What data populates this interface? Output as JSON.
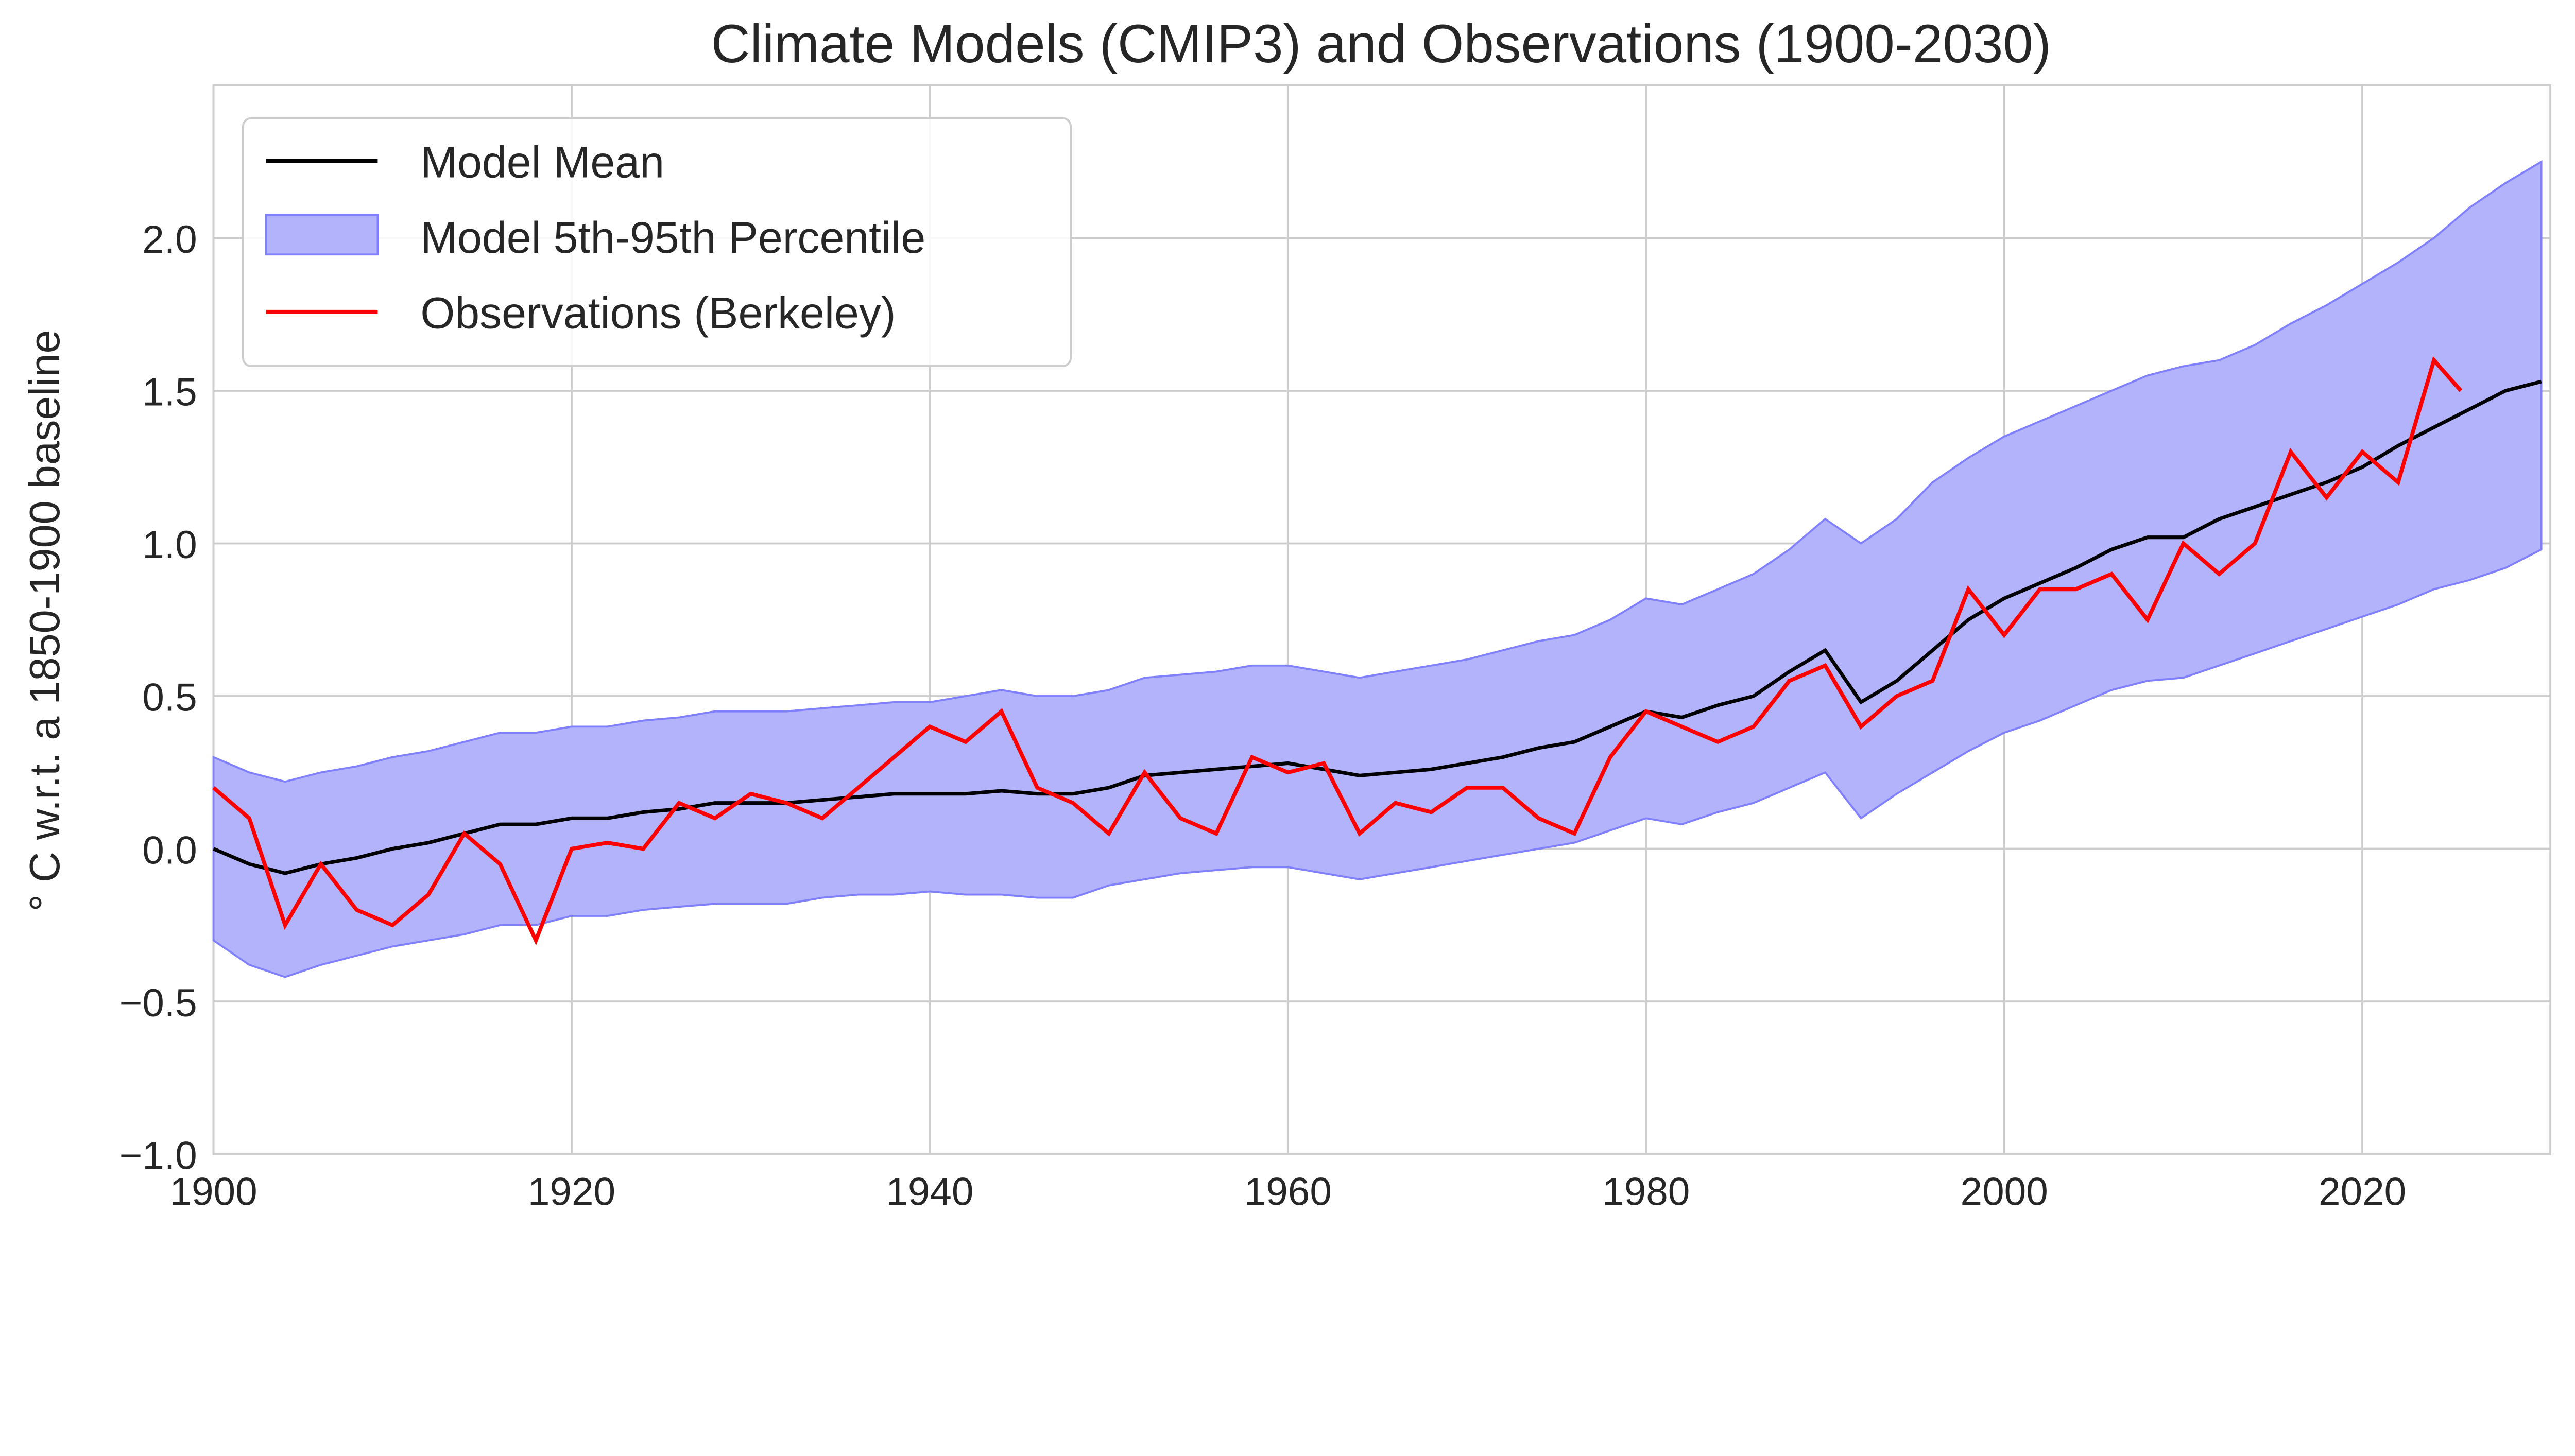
{
  "chart_data": {
    "type": "line",
    "title": "Climate Models (CMIP3) and Observations (1900-2030)",
    "xlabel": "",
    "ylabel": "° C w.r.t. a 1850-1900 baseline",
    "xlim": [
      1900,
      2030.5
    ],
    "ylim": [
      -1.0,
      2.5
    ],
    "xticks": [
      1900,
      1920,
      1940,
      1960,
      1980,
      2000,
      2020
    ],
    "xtick_labels": [
      "1900",
      "1920",
      "1940",
      "1960",
      "1980",
      "2000",
      "2020"
    ],
    "yticks": [
      -1.0,
      -0.5,
      0.0,
      0.5,
      1.0,
      1.5,
      2.0
    ],
    "ytick_labels": [
      "−1.0",
      "−0.5",
      "0.0",
      "0.5",
      "1.0",
      "1.5",
      "2.0"
    ],
    "grid": true,
    "legend_position": "top-left",
    "legend": [
      "Model Mean",
      "Model 5th-95th Percentile",
      "Observations (Berkeley)"
    ],
    "colors": {
      "model_mean": "#000000",
      "band_fill": "#b3b3fb",
      "band_edge": "#8080ff",
      "observations": "#ff0000",
      "grid": "#cccccc"
    },
    "model_x": [
      1900,
      1902,
      1904,
      1906,
      1908,
      1910,
      1912,
      1914,
      1916,
      1918,
      1920,
      1922,
      1924,
      1926,
      1928,
      1930,
      1932,
      1934,
      1936,
      1938,
      1940,
      1942,
      1944,
      1946,
      1948,
      1950,
      1952,
      1954,
      1956,
      1958,
      1960,
      1962,
      1964,
      1966,
      1968,
      1970,
      1972,
      1974,
      1976,
      1978,
      1980,
      1982,
      1984,
      1986,
      1988,
      1990,
      1992,
      1994,
      1996,
      1998,
      2000,
      2002,
      2004,
      2006,
      2008,
      2010,
      2012,
      2014,
      2016,
      2018,
      2020,
      2022,
      2024,
      2026,
      2028,
      2030
    ],
    "series": [
      {
        "name": "Model Mean",
        "values": [
          0.0,
          -0.05,
          -0.08,
          -0.05,
          -0.03,
          0.0,
          0.02,
          0.05,
          0.08,
          0.08,
          0.1,
          0.1,
          0.12,
          0.13,
          0.15,
          0.15,
          0.15,
          0.16,
          0.17,
          0.18,
          0.18,
          0.18,
          0.19,
          0.18,
          0.18,
          0.2,
          0.24,
          0.25,
          0.26,
          0.27,
          0.28,
          0.26,
          0.24,
          0.25,
          0.26,
          0.28,
          0.3,
          0.33,
          0.35,
          0.4,
          0.45,
          0.43,
          0.47,
          0.5,
          0.58,
          0.65,
          0.48,
          0.55,
          0.65,
          0.75,
          0.82,
          0.87,
          0.92,
          0.98,
          1.02,
          1.02,
          1.08,
          1.12,
          1.16,
          1.2,
          1.25,
          1.32,
          1.38,
          1.44,
          1.5,
          1.53
        ]
      },
      {
        "name": "Model 95th Percentile",
        "values": [
          0.3,
          0.25,
          0.22,
          0.25,
          0.27,
          0.3,
          0.32,
          0.35,
          0.38,
          0.38,
          0.4,
          0.4,
          0.42,
          0.43,
          0.45,
          0.45,
          0.45,
          0.46,
          0.47,
          0.48,
          0.48,
          0.5,
          0.52,
          0.5,
          0.5,
          0.52,
          0.56,
          0.57,
          0.58,
          0.6,
          0.6,
          0.58,
          0.56,
          0.58,
          0.6,
          0.62,
          0.65,
          0.68,
          0.7,
          0.75,
          0.82,
          0.8,
          0.85,
          0.9,
          0.98,
          1.08,
          1.0,
          1.08,
          1.2,
          1.28,
          1.35,
          1.4,
          1.45,
          1.5,
          1.55,
          1.58,
          1.6,
          1.65,
          1.72,
          1.78,
          1.85,
          1.92,
          2.0,
          2.1,
          2.18,
          2.25
        ]
      },
      {
        "name": "Model 5th Percentile",
        "values": [
          -0.3,
          -0.38,
          -0.42,
          -0.38,
          -0.35,
          -0.32,
          -0.3,
          -0.28,
          -0.25,
          -0.25,
          -0.22,
          -0.22,
          -0.2,
          -0.19,
          -0.18,
          -0.18,
          -0.18,
          -0.16,
          -0.15,
          -0.15,
          -0.14,
          -0.15,
          -0.15,
          -0.16,
          -0.16,
          -0.12,
          -0.1,
          -0.08,
          -0.07,
          -0.06,
          -0.06,
          -0.08,
          -0.1,
          -0.08,
          -0.06,
          -0.04,
          -0.02,
          0.0,
          0.02,
          0.06,
          0.1,
          0.08,
          0.12,
          0.15,
          0.2,
          0.25,
          0.1,
          0.18,
          0.25,
          0.32,
          0.38,
          0.42,
          0.47,
          0.52,
          0.55,
          0.56,
          0.6,
          0.64,
          0.68,
          0.72,
          0.76,
          0.8,
          0.85,
          0.88,
          0.92,
          0.98
        ]
      }
    ],
    "obs_x": [
      1900,
      1902,
      1904,
      1906,
      1908,
      1910,
      1912,
      1914,
      1916,
      1918,
      1920,
      1922,
      1924,
      1926,
      1928,
      1930,
      1932,
      1934,
      1936,
      1938,
      1940,
      1942,
      1944,
      1946,
      1948,
      1950,
      1952,
      1954,
      1956,
      1958,
      1960,
      1962,
      1964,
      1966,
      1968,
      1970,
      1972,
      1974,
      1976,
      1978,
      1980,
      1982,
      1984,
      1986,
      1988,
      1990,
      1992,
      1994,
      1996,
      1998,
      2000,
      2002,
      2004,
      2006,
      2008,
      2010,
      2012,
      2014,
      2016,
      2018,
      2020,
      2022,
      2024,
      2025.5
    ],
    "observations": [
      0.2,
      0.1,
      -0.25,
      -0.05,
      -0.2,
      -0.25,
      -0.15,
      0.05,
      -0.05,
      -0.3,
      0.0,
      0.02,
      0.0,
      0.15,
      0.1,
      0.18,
      0.15,
      0.1,
      0.2,
      0.3,
      0.4,
      0.35,
      0.45,
      0.2,
      0.15,
      0.05,
      0.25,
      0.1,
      0.05,
      0.3,
      0.25,
      0.28,
      0.05,
      0.15,
      0.12,
      0.2,
      0.2,
      0.1,
      0.05,
      0.3,
      0.45,
      0.4,
      0.35,
      0.4,
      0.55,
      0.6,
      0.4,
      0.5,
      0.55,
      0.85,
      0.7,
      0.85,
      0.85,
      0.9,
      0.75,
      1.0,
      0.9,
      1.0,
      1.3,
      1.15,
      1.3,
      1.2,
      1.6,
      1.5
    ]
  }
}
